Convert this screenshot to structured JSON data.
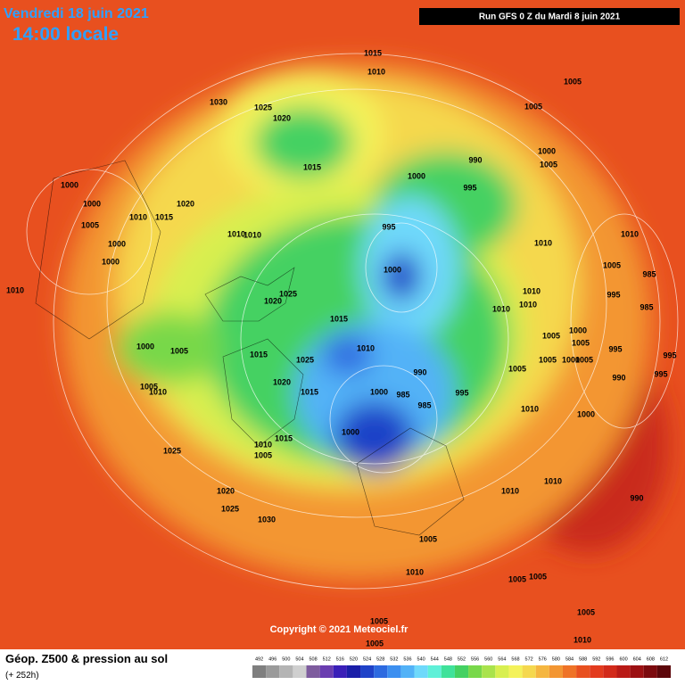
{
  "header": {
    "date": "Vendredi 18 juin 2021",
    "time": "14:00 locale",
    "run": "Run GFS 0 Z du Mardi 8 juin 2021"
  },
  "copyright": "Copyright © 2021 Meteociel.fr",
  "footer": {
    "title": "Géop. Z500 & pression au sol",
    "lead": "(+ 252h)"
  },
  "legend": {
    "labels": [
      492,
      496,
      500,
      504,
      508,
      512,
      516,
      520,
      524,
      528,
      532,
      536,
      540,
      544,
      548,
      552,
      556,
      560,
      564,
      568,
      572,
      576,
      580,
      584,
      588,
      592,
      596,
      600,
      604,
      608,
      612
    ],
    "colors": [
      "#7f7f7f",
      "#9a9a9a",
      "#b4b4b4",
      "#cfcfcf",
      "#7e5c9e",
      "#6a3db0",
      "#3a1fb8",
      "#1a1ea8",
      "#1f42c8",
      "#2d6ae0",
      "#3c8ff0",
      "#52b2f7",
      "#6fd9fb",
      "#5ff0d8",
      "#3fe29a",
      "#44d162",
      "#78d84a",
      "#a9e34c",
      "#d8ef50",
      "#f4f25a",
      "#f5d84e",
      "#f5b640",
      "#f39632",
      "#ef7327",
      "#e8501f",
      "#e33b1e",
      "#d22a1a",
      "#b91a16",
      "#9c1012",
      "#7c0a0e",
      "#5c060a"
    ]
  },
  "pressure_labels": [
    1015,
    1010,
    1005,
    1030,
    1025,
    1020,
    1005,
    990,
    1015,
    1000,
    1005,
    1000,
    995,
    1000,
    1020,
    1000,
    1010,
    1015,
    1005,
    995,
    1000,
    1010,
    1010,
    1010,
    1010,
    1000,
    1000,
    1005,
    985,
    1010,
    1025,
    995,
    1020,
    1010,
    1010,
    985,
    1010,
    1015,
    1000,
    1005,
    1005,
    995,
    1000,
    1005,
    1015,
    1025,
    1010,
    990,
    1005,
    1005,
    1000,
    1005,
    995,
    995,
    990,
    1005,
    1010,
    1020,
    1015,
    1000,
    985,
    985,
    995,
    1000,
    1010,
    1000,
    1015,
    1010,
    1005,
    1025,
    1010,
    1010,
    1020,
    990,
    1025,
    1030,
    1005,
    1010,
    1005,
    1005,
    1005,
    1010,
    1005,
    1005
  ]
}
